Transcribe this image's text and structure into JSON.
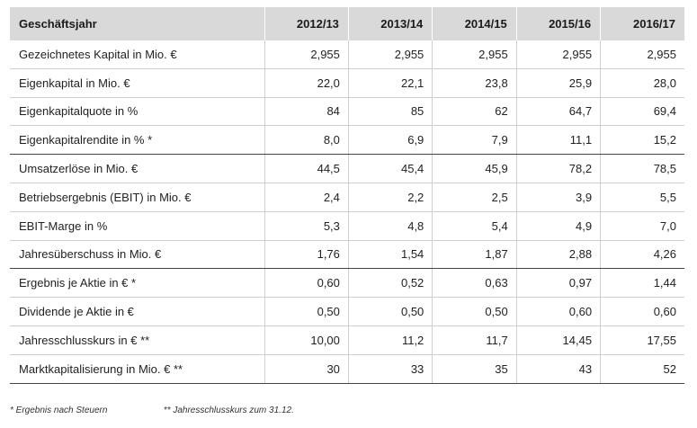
{
  "table": {
    "header_label": "Geschäftsjahr",
    "years": [
      "2012/13",
      "2013/14",
      "2014/15",
      "2015/16",
      "2016/17"
    ],
    "rows": [
      {
        "label": "Gezeichnetes Kapital in Mio. €",
        "values": [
          "2,955",
          "2,955",
          "2,955",
          "2,955",
          "2,955"
        ],
        "group_end": false
      },
      {
        "label": "Eigenkapital in Mio. €",
        "values": [
          "22,0",
          "22,1",
          "23,8",
          "25,9",
          "28,0"
        ],
        "group_end": false
      },
      {
        "label": "Eigenkapitalquote in %",
        "values": [
          "84",
          "85",
          "62",
          "64,7",
          "69,4"
        ],
        "group_end": false
      },
      {
        "label": "Eigenkapitalrendite in % *",
        "values": [
          "8,0",
          "6,9",
          "7,9",
          "11,1",
          "15,2"
        ],
        "group_end": true
      },
      {
        "label": "Umsatzerlöse in Mio. €",
        "values": [
          "44,5",
          "45,4",
          "45,9",
          "78,2",
          "78,5"
        ],
        "group_end": false
      },
      {
        "label": "Betriebsergebnis (EBIT) in Mio. €",
        "values": [
          "2,4",
          "2,2",
          "2,5",
          "3,9",
          "5,5"
        ],
        "group_end": false
      },
      {
        "label": "EBIT-Marge in %",
        "values": [
          "5,3",
          "4,8",
          "5,4",
          "4,9",
          "7,0"
        ],
        "group_end": false
      },
      {
        "label": "Jahresüberschuss in Mio. €",
        "values": [
          "1,76",
          "1,54",
          "1,87",
          "2,88",
          "4,26"
        ],
        "group_end": true
      },
      {
        "label": "Ergebnis je Aktie in € *",
        "values": [
          "0,60",
          "0,52",
          "0,63",
          "0,97",
          "1,44"
        ],
        "group_end": false
      },
      {
        "label": "Dividende je Aktie in €",
        "values": [
          "0,50",
          "0,50",
          "0,50",
          "0,60",
          "0,60"
        ],
        "group_end": false
      },
      {
        "label": "Jahresschlusskurs in € **",
        "values": [
          "10,00",
          "11,2",
          "11,7",
          "14,45",
          "17,55"
        ],
        "group_end": false
      },
      {
        "label": "Marktkapitalisierung in Mio. € **",
        "values": [
          "30",
          "33",
          "35",
          "43",
          "52"
        ],
        "group_end": true
      }
    ]
  },
  "footnotes": {
    "note1": "* Ergebnis nach Steuern",
    "note2": "** Jahresschlusskurs zum 31.12."
  }
}
